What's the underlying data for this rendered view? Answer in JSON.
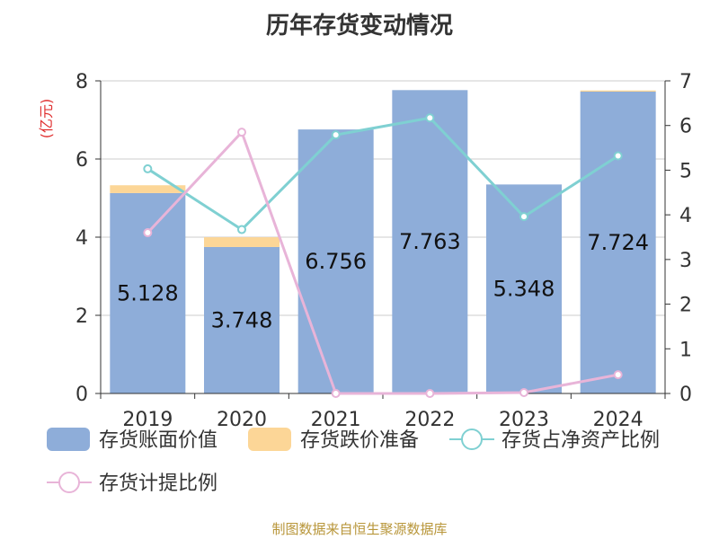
{
  "title": "历年存货变动情况",
  "unit_label": "(亿元)",
  "source": "制图数据来自恒生聚源数据库",
  "colors": {
    "book_value": "#8eadd9",
    "impairment": "#fcd697",
    "ratio_net_assets": "#7fd0d2",
    "provision_ratio": "#e8b4d8",
    "axis": "#333333",
    "grid": "#cccccc"
  },
  "chart_data": {
    "type": "bar",
    "categories": [
      "2019",
      "2020",
      "2021",
      "2022",
      "2023",
      "2024"
    ],
    "ylim": [
      0,
      8
    ],
    "yticks": [
      0,
      2,
      4,
      6,
      8
    ],
    "y2lim": [
      0,
      7
    ],
    "y2ticks": [
      0,
      1,
      2,
      3,
      4,
      5,
      6,
      7
    ],
    "series": [
      {
        "name": "存货账面价值",
        "kind": "bar",
        "axis": "left",
        "values": [
          5.128,
          3.748,
          6.756,
          7.763,
          5.348,
          7.724
        ],
        "labels": [
          "5.128",
          "3.748",
          "6.756",
          "7.763",
          "5.348",
          "7.724"
        ]
      },
      {
        "name": "存货跌价准备",
        "kind": "bar-stack",
        "axis": "left",
        "values": [
          0.2,
          0.25,
          0.0,
          0.0,
          0.0,
          0.03
        ]
      },
      {
        "name": "存货占净资产比例",
        "kind": "line",
        "axis": "right",
        "values": [
          5.03,
          3.67,
          5.79,
          6.17,
          3.96,
          5.32
        ]
      },
      {
        "name": "存货计提比例",
        "kind": "line",
        "axis": "right",
        "values": [
          3.6,
          5.85,
          0.0,
          0.0,
          0.02,
          0.42
        ]
      }
    ],
    "legend": "bottom"
  }
}
